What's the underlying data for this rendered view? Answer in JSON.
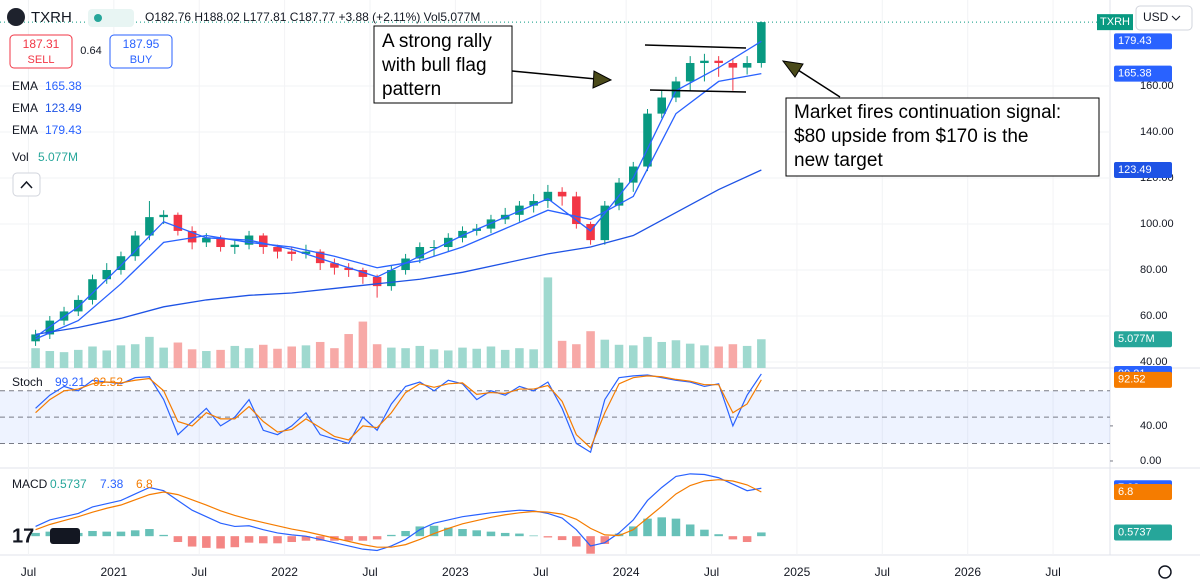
{
  "header": {
    "symbol": "TXRH",
    "ohlc": "O182.76 H188.02 L177.81 C187.77 +3.88 (+2.11%) Vol5.077M",
    "sell_price": "187.31",
    "sell": "SELL",
    "spread": "0.64",
    "buy_price": "187.95",
    "buy": "BUY",
    "currency": "USD"
  },
  "annotations": [
    {
      "lines": [
        "A strong rally",
        "with bull flag",
        "pattern"
      ]
    },
    {
      "lines": [
        "Market fires continuation signal:",
        "$80 upside from $170 is the",
        "new target"
      ]
    }
  ],
  "chart_data": [
    {
      "type": "candlestick",
      "up_color": "#089981",
      "down_color": "#f23645",
      "x": [
        "2020-07",
        "2020-08",
        "2020-09",
        "2020-10",
        "2020-11",
        "2020-12",
        "2021-01",
        "2021-02",
        "2021-03",
        "2021-04",
        "2021-05",
        "2021-06",
        "2021-07",
        "2021-08",
        "2021-09",
        "2021-10",
        "2021-11",
        "2021-12",
        "2022-01",
        "2022-02",
        "2022-03",
        "2022-04",
        "2022-05",
        "2022-06",
        "2022-07",
        "2022-08",
        "2022-09",
        "2022-10",
        "2022-11",
        "2022-12",
        "2023-01",
        "2023-02",
        "2023-03",
        "2023-04",
        "2023-05",
        "2023-06",
        "2023-07",
        "2023-08",
        "2023-09",
        "2023-10",
        "2023-11",
        "2023-12",
        "2024-01",
        "2024-02",
        "2024-03",
        "2024-04",
        "2024-05",
        "2024-06",
        "2024-07",
        "2024-08",
        "2024-09",
        "2024-10"
      ],
      "open": [
        49,
        52,
        58,
        62,
        67,
        76,
        80,
        86,
        95,
        103,
        104,
        97,
        92,
        94,
        90,
        91,
        95,
        90,
        88,
        87,
        88,
        83,
        81,
        80,
        77,
        73,
        80,
        85,
        90,
        90,
        94,
        97,
        98,
        102,
        104,
        108,
        110,
        114,
        112,
        100,
        93,
        108,
        118,
        125,
        148,
        155,
        162,
        170,
        171,
        170,
        168,
        170
      ],
      "high": [
        54,
        60,
        64,
        69,
        78,
        83,
        88,
        97,
        110,
        106,
        105,
        99,
        96,
        95,
        93,
        97,
        96,
        91,
        90,
        91,
        89,
        85,
        83,
        81,
        78,
        82,
        87,
        92,
        93,
        96,
        99,
        100,
        104,
        107,
        110,
        113,
        117,
        116,
        114,
        101,
        110,
        120,
        127,
        150,
        158,
        164,
        173,
        174,
        173,
        172,
        173,
        188.02
      ],
      "low": [
        47,
        50,
        56,
        60,
        65,
        74,
        78,
        84,
        93,
        100,
        95,
        89,
        90,
        88,
        87,
        89,
        87,
        85,
        84,
        85,
        80,
        78,
        77,
        74,
        68,
        71,
        78,
        83,
        86,
        88,
        92,
        95,
        96,
        100,
        101,
        105,
        107,
        108,
        98,
        91,
        91,
        106,
        114,
        123,
        146,
        153,
        158,
        162,
        164,
        158,
        165,
        168
      ],
      "close": [
        52,
        58,
        62,
        67,
        76,
        80,
        86,
        95,
        103,
        104,
        97,
        92,
        94,
        90,
        91,
        95,
        90,
        88,
        87,
        88,
        83,
        81,
        80,
        77,
        73,
        80,
        85,
        90,
        90,
        94,
        97,
        98,
        102,
        104,
        108,
        110,
        114,
        112,
        100,
        93,
        108,
        118,
        125,
        148,
        155,
        162,
        170,
        171,
        170,
        168,
        170,
        187.77
      ],
      "xlim": [
        "2020-05",
        "2026-11"
      ],
      "xticks": [
        {
          "value": "2020-07",
          "label": "Jul"
        },
        {
          "value": "2021-01",
          "label": "2021"
        },
        {
          "value": "2021-07",
          "label": "Jul"
        },
        {
          "value": "2022-01",
          "label": "2022"
        },
        {
          "value": "2022-07",
          "label": "Jul"
        },
        {
          "value": "2023-01",
          "label": "2023"
        },
        {
          "value": "2023-07",
          "label": "Jul"
        },
        {
          "value": "2024-01",
          "label": "2024"
        },
        {
          "value": "2024-07",
          "label": "Jul"
        },
        {
          "value": "2025-01",
          "label": "2025"
        },
        {
          "value": "2025-07",
          "label": "Jul"
        },
        {
          "value": "2026-01",
          "label": "2026"
        },
        {
          "value": "2026-07",
          "label": "Jul"
        }
      ],
      "ylim": [
        37.4,
        197.4
      ],
      "yticks": [
        {
          "value": 40,
          "label": "40.00"
        },
        {
          "value": 60,
          "label": "60.00"
        },
        {
          "value": 80,
          "label": "80.00"
        },
        {
          "value": 100,
          "label": "100.00"
        },
        {
          "value": 120,
          "label": "120.00"
        },
        {
          "value": 140,
          "label": "140.00"
        },
        {
          "value": 160,
          "label": "160.00"
        }
      ],
      "series": [
        {
          "name": "EMA",
          "color": "#2962ff",
          "x": [
            "2020-07",
            "2020-10",
            "2021-01",
            "2021-04",
            "2021-07",
            "2021-10",
            "2022-01",
            "2022-04",
            "2022-07",
            "2022-10",
            "2023-01",
            "2023-04",
            "2023-07",
            "2023-10",
            "2024-01",
            "2024-04",
            "2024-07",
            "2024-10"
          ],
          "values": [
            50,
            58,
            74,
            92,
            95,
            92,
            90,
            86,
            81,
            84,
            90,
            98,
            106,
            102,
            112,
            148,
            162,
            165.38
          ]
        },
        {
          "name": "EMA",
          "color": "#1e53e5",
          "x": [
            "2020-07",
            "2020-10",
            "2021-01",
            "2021-04",
            "2021-07",
            "2021-10",
            "2022-01",
            "2022-04",
            "2022-07",
            "2022-10",
            "2023-01",
            "2023-04",
            "2023-07",
            "2023-10",
            "2024-01",
            "2024-04",
            "2024-07",
            "2024-10"
          ],
          "values": [
            52,
            55,
            59,
            64,
            67,
            69,
            70,
            72,
            74,
            76,
            79,
            83,
            87,
            90,
            95,
            105,
            115,
            123.49
          ]
        },
        {
          "name": "EMA",
          "color": "#2962ff",
          "x": [
            "2020-07",
            "2020-10",
            "2021-01",
            "2021-04",
            "2021-07",
            "2021-10",
            "2022-01",
            "2022-04",
            "2022-07",
            "2022-10",
            "2023-01",
            "2023-04",
            "2023-07",
            "2023-10",
            "2024-01",
            "2024-04",
            "2024-07",
            "2024-10"
          ],
          "values": [
            51,
            64,
            82,
            101,
            94,
            93,
            89,
            83,
            77,
            86,
            95,
            103,
            111,
            97,
            120,
            158,
            168,
            179.43
          ]
        }
      ],
      "volume": {
        "name": "Vol",
        "up_color": "#9fd9cf",
        "down_color": "#f7a9a7",
        "ylim": [
          0,
          65
        ],
        "values": [
          3.5,
          3.0,
          2.8,
          3.2,
          3.8,
          3.1,
          4.0,
          4.2,
          5.5,
          3.6,
          4.5,
          3.3,
          3.0,
          3.2,
          3.9,
          3.5,
          4.1,
          3.4,
          3.8,
          4.0,
          4.6,
          3.5,
          6.0,
          8.2,
          4.2,
          3.6,
          3.5,
          3.9,
          3.3,
          3.1,
          3.6,
          3.4,
          3.8,
          3.2,
          3.5,
          3.3,
          16.0,
          4.8,
          4.2,
          6.5,
          5.0,
          4.1,
          4.0,
          5.5,
          4.6,
          4.9,
          4.3,
          4.0,
          3.8,
          4.2,
          3.9,
          5.077
        ],
        "value_labels": [
          null,
          null,
          null,
          null,
          null,
          null,
          null,
          null,
          null,
          null,
          null,
          null,
          null,
          null,
          null,
          null,
          null,
          null,
          null,
          null,
          null,
          null,
          null,
          null,
          null,
          null,
          null,
          null,
          null,
          null,
          null,
          null,
          null,
          null,
          null,
          null,
          null,
          null,
          null,
          null,
          null,
          null,
          null,
          null,
          null,
          null,
          null,
          null,
          null,
          null,
          null,
          "5.077M"
        ]
      }
    },
    {
      "type": "line",
      "title": "Stoch",
      "x": [
        "2020-07",
        "2020-08",
        "2020-09",
        "2020-10",
        "2020-11",
        "2020-12",
        "2021-01",
        "2021-02",
        "2021-03",
        "2021-04",
        "2021-05",
        "2021-06",
        "2021-07",
        "2021-08",
        "2021-09",
        "2021-10",
        "2021-11",
        "2021-12",
        "2022-01",
        "2022-02",
        "2022-03",
        "2022-04",
        "2022-05",
        "2022-06",
        "2022-07",
        "2022-08",
        "2022-09",
        "2022-10",
        "2022-11",
        "2022-12",
        "2023-01",
        "2023-02",
        "2023-03",
        "2023-04",
        "2023-05",
        "2023-06",
        "2023-07",
        "2023-08",
        "2023-09",
        "2023-10",
        "2023-11",
        "2023-12",
        "2024-01",
        "2024-02",
        "2024-03",
        "2024-04",
        "2024-05",
        "2024-06",
        "2024-07",
        "2024-08",
        "2024-09",
        "2024-10"
      ],
      "ylim": [
        -8,
        106
      ],
      "yticks": [
        {
          "value": 0,
          "label": "0.00"
        },
        {
          "value": 40,
          "label": "40.00"
        }
      ],
      "bands": [
        20,
        50,
        80
      ],
      "series": [
        {
          "color": "#2962ff",
          "values": [
            60,
            75,
            85,
            80,
            92,
            90,
            88,
            95,
            96,
            70,
            30,
            45,
            60,
            40,
            50,
            70,
            35,
            30,
            40,
            55,
            30,
            25,
            20,
            50,
            35,
            65,
            85,
            90,
            80,
            92,
            88,
            70,
            80,
            75,
            85,
            80,
            90,
            60,
            20,
            10,
            70,
            95,
            97,
            98,
            95,
            92,
            90,
            85,
            88,
            40,
            75,
            99.21
          ]
        },
        {
          "color": "#f57c00",
          "values": [
            55,
            70,
            80,
            82,
            88,
            90,
            89,
            92,
            94,
            80,
            45,
            40,
            55,
            48,
            48,
            62,
            45,
            33,
            36,
            48,
            38,
            28,
            24,
            40,
            38,
            55,
            78,
            88,
            84,
            88,
            89,
            76,
            78,
            77,
            82,
            82,
            86,
            68,
            30,
            15,
            55,
            88,
            95,
            97,
            96,
            93,
            91,
            87,
            87,
            55,
            65,
            92.52
          ]
        }
      ]
    },
    {
      "type": "macd",
      "title": "MACD",
      "up_color": "#26a69a",
      "down_color": "#ef5350",
      "x": [
        "2020-07",
        "2020-08",
        "2020-09",
        "2020-10",
        "2020-11",
        "2020-12",
        "2021-01",
        "2021-02",
        "2021-03",
        "2021-04",
        "2021-05",
        "2021-06",
        "2021-07",
        "2021-08",
        "2021-09",
        "2021-10",
        "2021-11",
        "2021-12",
        "2022-01",
        "2022-02",
        "2022-03",
        "2022-04",
        "2022-05",
        "2022-06",
        "2022-07",
        "2022-08",
        "2022-09",
        "2022-10",
        "2022-11",
        "2022-12",
        "2023-01",
        "2023-02",
        "2023-03",
        "2023-04",
        "2023-05",
        "2023-06",
        "2023-07",
        "2023-08",
        "2023-09",
        "2023-10",
        "2023-11",
        "2023-12",
        "2024-01",
        "2024-02",
        "2024-03",
        "2024-04",
        "2024-05",
        "2024-06",
        "2024-07",
        "2024-08",
        "2024-09",
        "2024-10"
      ],
      "ylim": [
        -2.9,
        10.5
      ],
      "histogram": [
        0.5,
        0.7,
        0.6,
        0.5,
        0.8,
        0.7,
        0.7,
        0.9,
        1.1,
        0.2,
        -0.9,
        -1.6,
        -1.8,
        -1.9,
        -1.7,
        -1.0,
        -1.1,
        -1.1,
        -0.9,
        -0.7,
        -0.7,
        -0.7,
        -0.7,
        -0.7,
        -0.5,
        0.2,
        0.8,
        1.5,
        1.6,
        1.3,
        1.1,
        0.9,
        0.7,
        0.5,
        0.4,
        0.1,
        -0.2,
        -0.6,
        -1.6,
        -2.7,
        -1.2,
        0.4,
        1.5,
        2.7,
        2.9,
        2.7,
        1.8,
        1.0,
        0.3,
        -0.5,
        -0.9,
        0.5737
      ],
      "series": [
        {
          "color": "#2962ff",
          "values": [
            1.5,
            2.5,
            3.0,
            3.5,
            4.5,
            5.0,
            5.5,
            6.5,
            7.5,
            7.0,
            5.5,
            4.0,
            3.0,
            2.0,
            1.5,
            1.6,
            1.0,
            0.5,
            0.2,
            0,
            -0.5,
            -1.0,
            -1.5,
            -2.0,
            -2.2,
            -1.5,
            -0.5,
            1.0,
            2.0,
            2.5,
            3.0,
            3.3,
            3.6,
            3.8,
            4.0,
            3.9,
            3.5,
            2.8,
            1.0,
            -1.5,
            -1.0,
            0.5,
            2.5,
            5.5,
            7.5,
            9.2,
            9.6,
            9.5,
            9.0,
            8.0,
            7.0,
            7.38
          ]
        },
        {
          "color": "#f57c00",
          "values": [
            1.0,
            1.8,
            2.4,
            3.0,
            3.7,
            4.3,
            4.8,
            5.6,
            6.4,
            6.8,
            6.4,
            5.6,
            4.8,
            3.9,
            3.2,
            2.6,
            2.1,
            1.6,
            1.1,
            0.7,
            0.2,
            -0.3,
            -0.8,
            -1.3,
            -1.7,
            -1.7,
            -1.3,
            -0.5,
            0.4,
            1.2,
            1.9,
            2.4,
            2.9,
            3.3,
            3.6,
            3.8,
            3.7,
            3.4,
            2.6,
            1.2,
            0.2,
            0.1,
            1.0,
            2.8,
            4.6,
            6.5,
            7.8,
            8.5,
            8.7,
            8.5,
            7.9,
            6.8
          ]
        }
      ]
    }
  ]
}
